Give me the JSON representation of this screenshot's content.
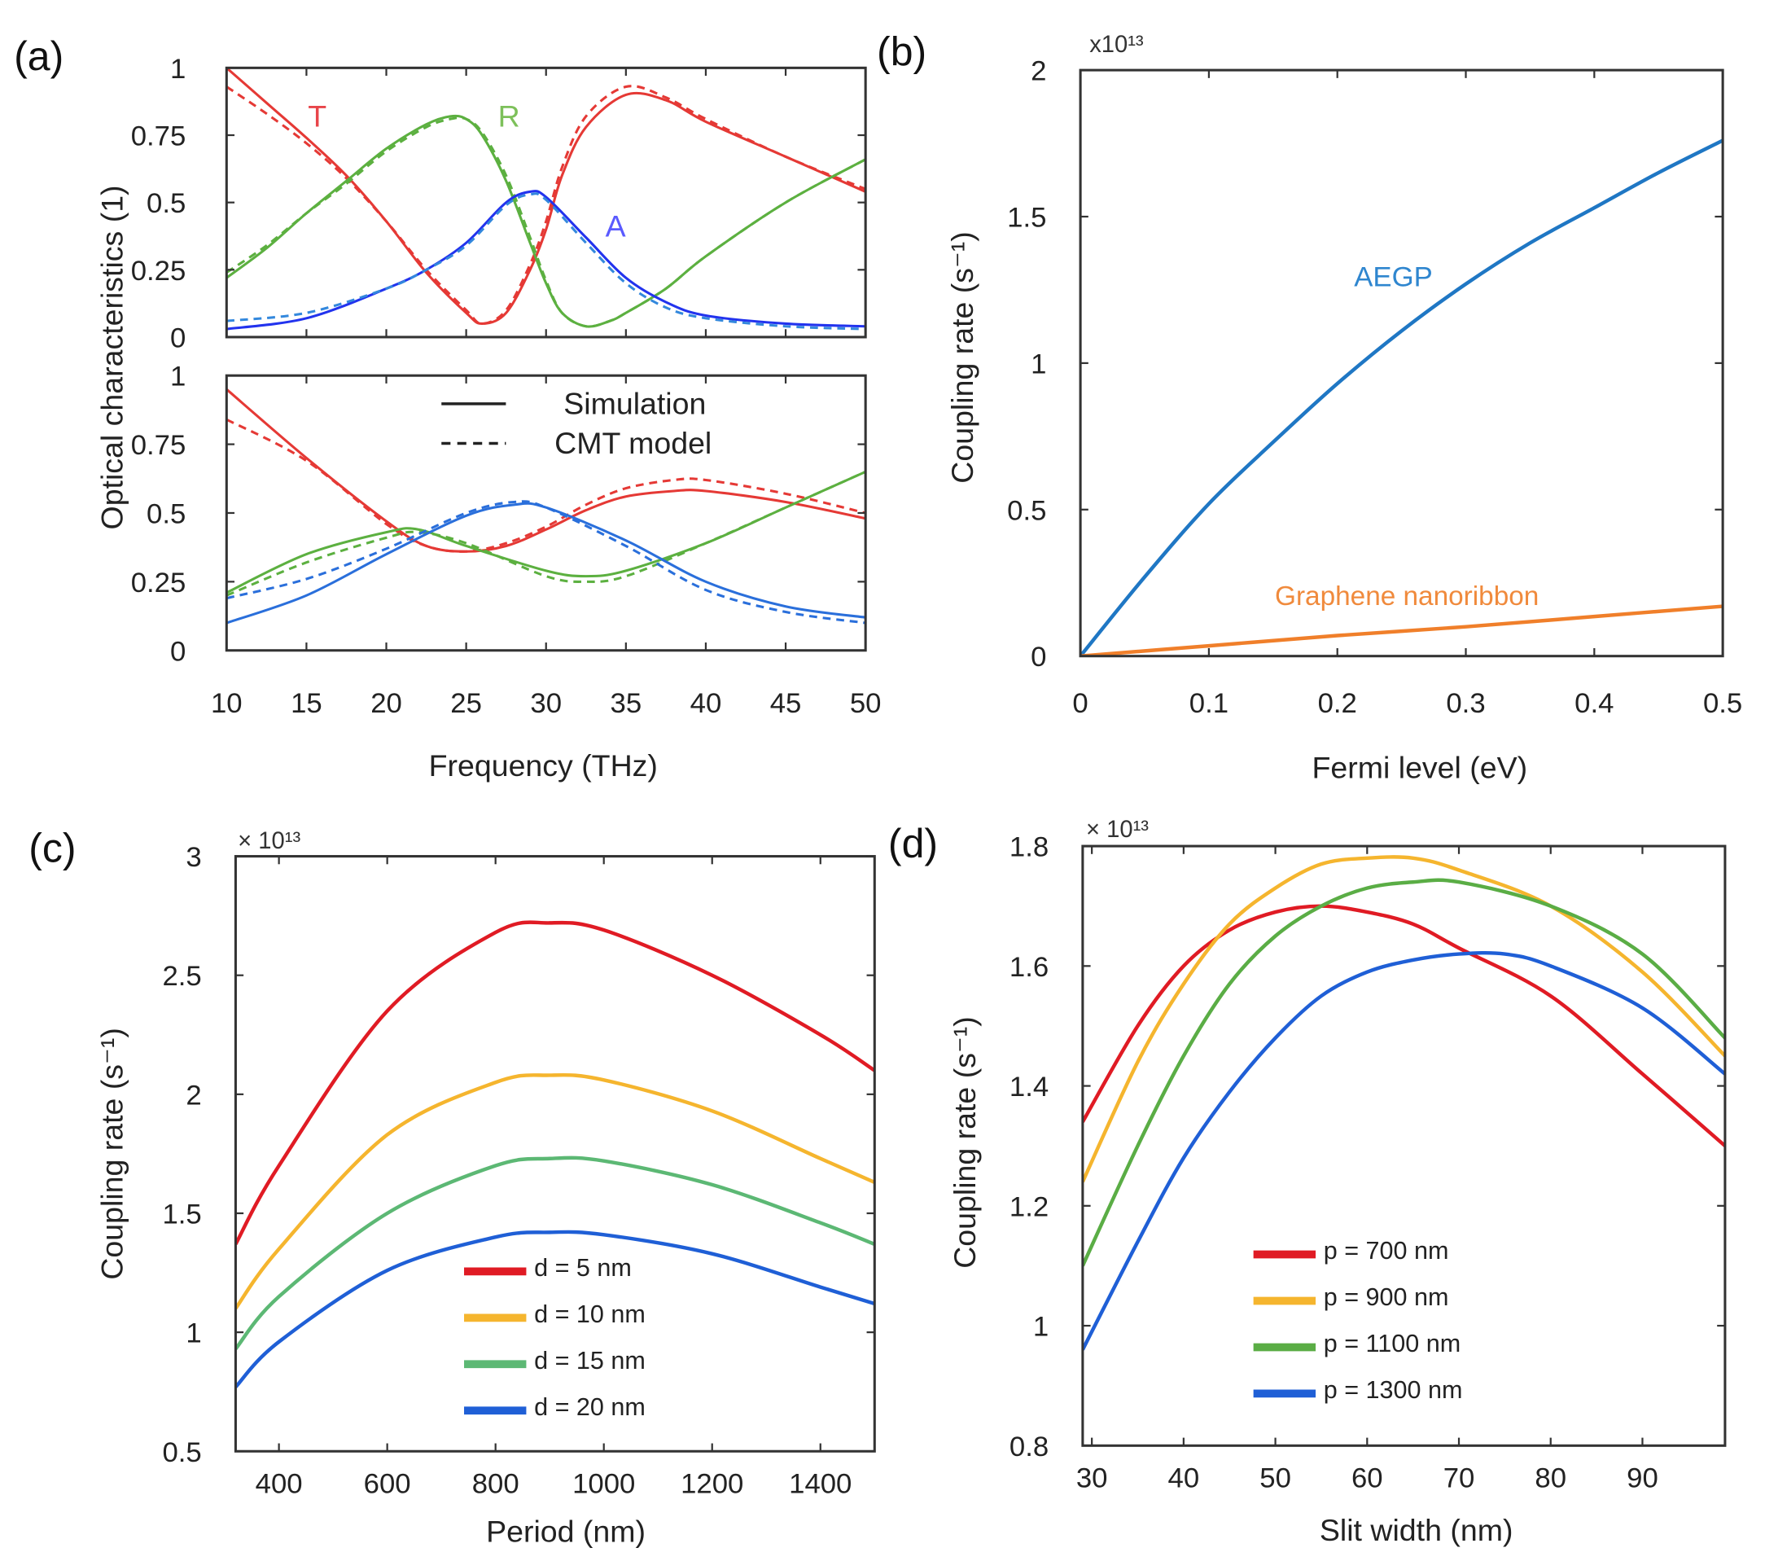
{
  "panel_labels": [
    "(a)",
    "(b)",
    "(c)",
    "(d)"
  ],
  "chart_data": [
    {
      "id": "a-top",
      "type": "line",
      "xlabel": "Frequency (THz)",
      "ylabel": "Optical characteristics (1)",
      "xlim": [
        10,
        50
      ],
      "ylim": [
        0,
        1
      ],
      "xticks": [
        10,
        15,
        20,
        25,
        30,
        35,
        40,
        45,
        50
      ],
      "yticks": [
        0,
        0.25,
        0.5,
        0.75,
        1
      ],
      "annotations": [
        {
          "text": "T",
          "color": "#e8454a"
        },
        {
          "text": "R",
          "color": "#7dc05a"
        },
        {
          "text": "A",
          "color": "#5a5aff"
        }
      ],
      "series": [
        {
          "name": "T simulation",
          "color": "#e53935",
          "dash": false,
          "x": [
            10,
            12.5,
            15,
            17.5,
            20,
            22.5,
            25,
            26,
            27.5,
            29,
            30,
            31,
            32.5,
            35,
            37.5,
            40,
            45,
            50
          ],
          "y": [
            1.0,
            0.87,
            0.74,
            0.6,
            0.43,
            0.24,
            0.09,
            0.05,
            0.09,
            0.25,
            0.4,
            0.6,
            0.78,
            0.9,
            0.88,
            0.8,
            0.67,
            0.54
          ]
        },
        {
          "name": "T CMT",
          "color": "#e53935",
          "dash": true,
          "x": [
            10,
            12.5,
            15,
            17.5,
            20,
            22.5,
            25,
            26,
            27.5,
            29,
            30,
            31,
            32.5,
            35,
            37.5,
            40,
            45,
            50
          ],
          "y": [
            0.93,
            0.83,
            0.72,
            0.59,
            0.43,
            0.25,
            0.1,
            0.05,
            0.1,
            0.27,
            0.43,
            0.63,
            0.82,
            0.93,
            0.89,
            0.81,
            0.67,
            0.55
          ]
        },
        {
          "name": "R simulation",
          "color": "#5cb040",
          "dash": false,
          "x": [
            10,
            12.5,
            15,
            17.5,
            20,
            22.5,
            24,
            25,
            26,
            27.5,
            29,
            30,
            31,
            32.5,
            34,
            35,
            37.5,
            40,
            45,
            50
          ],
          "y": [
            0.22,
            0.33,
            0.46,
            0.58,
            0.7,
            0.79,
            0.82,
            0.81,
            0.75,
            0.58,
            0.35,
            0.2,
            0.09,
            0.04,
            0.06,
            0.09,
            0.18,
            0.3,
            0.5,
            0.66
          ]
        },
        {
          "name": "R CMT",
          "color": "#5cb040",
          "dash": true,
          "x": [
            10,
            12.5,
            15,
            17.5,
            20,
            22.5,
            24,
            25,
            26,
            27.5,
            29,
            30,
            31,
            32.5,
            34,
            35,
            37.5,
            40,
            45,
            50
          ],
          "y": [
            0.24,
            0.34,
            0.46,
            0.57,
            0.69,
            0.78,
            0.81,
            0.81,
            0.76,
            0.6,
            0.37,
            0.21,
            0.09,
            0.04,
            0.06,
            0.09,
            0.18,
            0.3,
            0.5,
            0.66
          ]
        },
        {
          "name": "A simulation",
          "color": "#2233ee",
          "dash": false,
          "x": [
            10,
            15,
            20,
            22.5,
            25,
            27.5,
            29,
            30,
            32.5,
            35,
            37.5,
            40,
            45,
            50
          ],
          "y": [
            0.03,
            0.07,
            0.18,
            0.25,
            0.35,
            0.5,
            0.54,
            0.52,
            0.37,
            0.22,
            0.13,
            0.08,
            0.05,
            0.04
          ]
        },
        {
          "name": "A CMT",
          "color": "#3388dd",
          "dash": true,
          "x": [
            10,
            15,
            20,
            22.5,
            25,
            27.5,
            29,
            30,
            32.5,
            35,
            37.5,
            40,
            45,
            50
          ],
          "y": [
            0.06,
            0.09,
            0.18,
            0.25,
            0.34,
            0.49,
            0.53,
            0.51,
            0.35,
            0.2,
            0.11,
            0.07,
            0.04,
            0.03
          ]
        }
      ]
    },
    {
      "id": "a-bottom",
      "type": "line",
      "xlim": [
        10,
        50
      ],
      "ylim": [
        0,
        1
      ],
      "xticks": [
        10,
        15,
        20,
        25,
        30,
        35,
        40,
        45,
        50
      ],
      "yticks": [
        0,
        0.25,
        0.5,
        0.75,
        1
      ],
      "legend": [
        {
          "label": "Simulation",
          "dash": false
        },
        {
          "label": "CMT model",
          "dash": true
        }
      ],
      "series": [
        {
          "name": "T simulation",
          "color": "#e53935",
          "dash": false,
          "x": [
            10,
            15,
            20,
            22.5,
            25,
            27.5,
            30,
            32.5,
            35,
            38,
            40,
            45,
            50
          ],
          "y": [
            0.95,
            0.7,
            0.47,
            0.38,
            0.36,
            0.38,
            0.44,
            0.51,
            0.56,
            0.58,
            0.58,
            0.54,
            0.48
          ]
        },
        {
          "name": "T CMT",
          "color": "#e53935",
          "dash": true,
          "x": [
            10,
            15,
            20,
            22.5,
            25,
            27.5,
            30,
            32.5,
            35,
            38,
            40,
            45,
            50
          ],
          "y": [
            0.84,
            0.69,
            0.46,
            0.38,
            0.36,
            0.39,
            0.45,
            0.53,
            0.59,
            0.62,
            0.62,
            0.57,
            0.5
          ]
        },
        {
          "name": "R simulation",
          "color": "#5cb040",
          "dash": false,
          "x": [
            10,
            15,
            20,
            22,
            25,
            30,
            32.5,
            35,
            40,
            45,
            50
          ],
          "y": [
            0.21,
            0.35,
            0.43,
            0.44,
            0.38,
            0.29,
            0.27,
            0.29,
            0.39,
            0.52,
            0.65
          ]
        },
        {
          "name": "R CMT",
          "color": "#5cb040",
          "dash": true,
          "x": [
            10,
            15,
            20,
            22,
            25,
            30,
            32.5,
            35,
            40,
            45,
            50
          ],
          "y": [
            0.2,
            0.32,
            0.41,
            0.43,
            0.39,
            0.27,
            0.25,
            0.27,
            0.39,
            0.52,
            0.65
          ]
        },
        {
          "name": "A simulation",
          "color": "#2a6fdb",
          "dash": false,
          "x": [
            10,
            15,
            20,
            25,
            28,
            30,
            35,
            40,
            45,
            50
          ],
          "y": [
            0.1,
            0.2,
            0.35,
            0.49,
            0.53,
            0.52,
            0.4,
            0.25,
            0.16,
            0.12
          ]
        },
        {
          "name": "A CMT",
          "color": "#2a6fdb",
          "dash": true,
          "x": [
            10,
            15,
            20,
            25,
            28,
            30,
            35,
            40,
            45,
            50
          ],
          "y": [
            0.19,
            0.26,
            0.37,
            0.5,
            0.54,
            0.52,
            0.38,
            0.22,
            0.14,
            0.1
          ]
        }
      ]
    },
    {
      "id": "b",
      "type": "line",
      "xlabel": "Fermi level (eV)",
      "ylabel": "Coupling rate (s⁻¹)",
      "y_multiplier": "x10¹³",
      "xlim": [
        0,
        0.5
      ],
      "ylim": [
        0,
        2
      ],
      "xticks": [
        0,
        0.1,
        0.2,
        0.3,
        0.4,
        0.5
      ],
      "yticks": [
        0,
        0.5,
        1,
        1.5,
        2
      ],
      "series": [
        {
          "name": "AEGP",
          "color": "#1f77c4",
          "dash": false,
          "x": [
            0,
            0.05,
            0.1,
            0.15,
            0.2,
            0.25,
            0.3,
            0.35,
            0.4,
            0.45,
            0.5
          ],
          "y": [
            0,
            0.27,
            0.52,
            0.73,
            0.93,
            1.11,
            1.27,
            1.41,
            1.53,
            1.65,
            1.76
          ]
        },
        {
          "name": "Graphene nanoribbon",
          "color": "#f07f2a",
          "dash": false,
          "x": [
            0,
            0.1,
            0.2,
            0.3,
            0.4,
            0.5
          ],
          "y": [
            0,
            0.035,
            0.07,
            0.1,
            0.135,
            0.17
          ]
        }
      ]
    },
    {
      "id": "c",
      "type": "line",
      "xlabel": "Period (nm)",
      "ylabel": "Coupling rate (s⁻¹)",
      "y_multiplier": "× 10¹³",
      "xlim": [
        320,
        1500
      ],
      "ylim": [
        0.5,
        3
      ],
      "xticks": [
        400,
        600,
        800,
        1000,
        1200,
        1400
      ],
      "yticks": [
        0.5,
        1,
        1.5,
        2,
        2.5,
        3
      ],
      "series": [
        {
          "name": "d = 5 nm",
          "color": "#e01b24",
          "dash": false,
          "x": [
            320,
            400,
            600,
            800,
            900,
            1000,
            1200,
            1400,
            1500
          ],
          "y": [
            1.37,
            1.7,
            2.35,
            2.68,
            2.72,
            2.69,
            2.5,
            2.25,
            2.1
          ]
        },
        {
          "name": "d = 10 nm",
          "color": "#f5b52e",
          "dash": false,
          "x": [
            320,
            400,
            600,
            800,
            900,
            1000,
            1200,
            1400,
            1500
          ],
          "y": [
            1.1,
            1.35,
            1.83,
            2.05,
            2.08,
            2.06,
            1.93,
            1.73,
            1.63
          ]
        },
        {
          "name": "d = 15 nm",
          "color": "#5cb874",
          "dash": false,
          "x": [
            320,
            400,
            600,
            800,
            900,
            1000,
            1200,
            1400,
            1500
          ],
          "y": [
            0.93,
            1.15,
            1.5,
            1.7,
            1.73,
            1.72,
            1.62,
            1.46,
            1.37
          ]
        },
        {
          "name": "d = 20 nm",
          "color": "#1f5fd6",
          "dash": false,
          "x": [
            320,
            400,
            600,
            800,
            900,
            1000,
            1200,
            1400,
            1500
          ],
          "y": [
            0.77,
            0.96,
            1.26,
            1.4,
            1.42,
            1.41,
            1.33,
            1.19,
            1.12
          ]
        }
      ]
    },
    {
      "id": "d",
      "type": "line",
      "xlabel": "Slit width (nm)",
      "ylabel": "Coupling rate (s⁻¹)",
      "y_multiplier": "× 10¹³",
      "xlim": [
        29,
        99
      ],
      "ylim": [
        0.8,
        1.8
      ],
      "xticks": [
        30,
        40,
        50,
        60,
        70,
        80,
        90
      ],
      "yticks": [
        0.8,
        1,
        1.2,
        1.4,
        1.6,
        1.8
      ],
      "series": [
        {
          "name": "p = 700 nm",
          "color": "#e01b24",
          "dash": false,
          "x": [
            29,
            35,
            40,
            45,
            50,
            55,
            60,
            65,
            70,
            80,
            90,
            99
          ],
          "y": [
            1.34,
            1.5,
            1.6,
            1.66,
            1.69,
            1.7,
            1.69,
            1.67,
            1.63,
            1.55,
            1.42,
            1.3
          ]
        },
        {
          "name": "p = 900 nm",
          "color": "#f5b52e",
          "dash": false,
          "x": [
            29,
            35,
            40,
            45,
            50,
            55,
            60,
            65,
            70,
            80,
            90,
            99
          ],
          "y": [
            1.24,
            1.44,
            1.57,
            1.67,
            1.73,
            1.77,
            1.78,
            1.78,
            1.76,
            1.7,
            1.59,
            1.45
          ]
        },
        {
          "name": "p = 1100 nm",
          "color": "#5aad45",
          "dash": false,
          "x": [
            29,
            35,
            40,
            45,
            50,
            55,
            60,
            65,
            70,
            80,
            90,
            99
          ],
          "y": [
            1.1,
            1.3,
            1.45,
            1.57,
            1.65,
            1.7,
            1.73,
            1.74,
            1.74,
            1.7,
            1.62,
            1.48
          ]
        },
        {
          "name": "p = 1300 nm",
          "color": "#1f5fd6",
          "dash": false,
          "x": [
            29,
            35,
            40,
            45,
            50,
            55,
            60,
            65,
            70,
            75,
            80,
            90,
            99
          ],
          "y": [
            0.96,
            1.14,
            1.28,
            1.39,
            1.48,
            1.55,
            1.59,
            1.61,
            1.62,
            1.62,
            1.6,
            1.53,
            1.42
          ]
        }
      ]
    }
  ]
}
